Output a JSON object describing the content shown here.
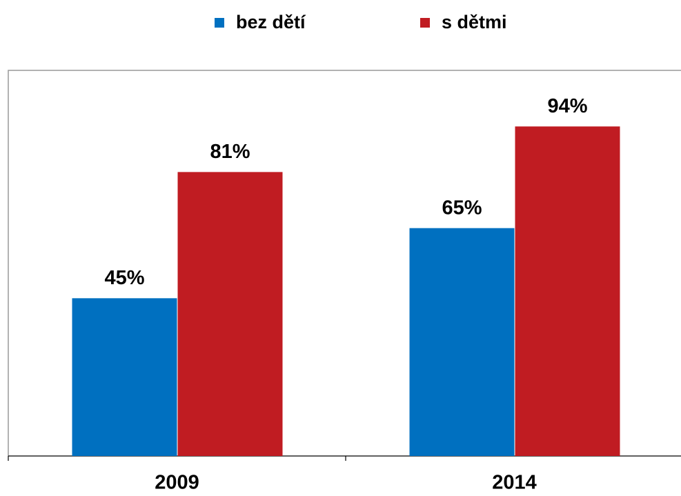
{
  "chart_data": {
    "type": "bar",
    "categories": [
      "2009",
      "2014"
    ],
    "series": [
      {
        "name": "bez dětí",
        "color": "#0070c0",
        "values": [
          45,
          65
        ],
        "value_labels": [
          "45%",
          "65%"
        ]
      },
      {
        "name": "s dětmi",
        "color": "#c01c22",
        "values": [
          81,
          94
        ],
        "value_labels": [
          "81%",
          "94%"
        ]
      }
    ],
    "ylim": [
      0,
      110
    ],
    "legend": "top"
  }
}
